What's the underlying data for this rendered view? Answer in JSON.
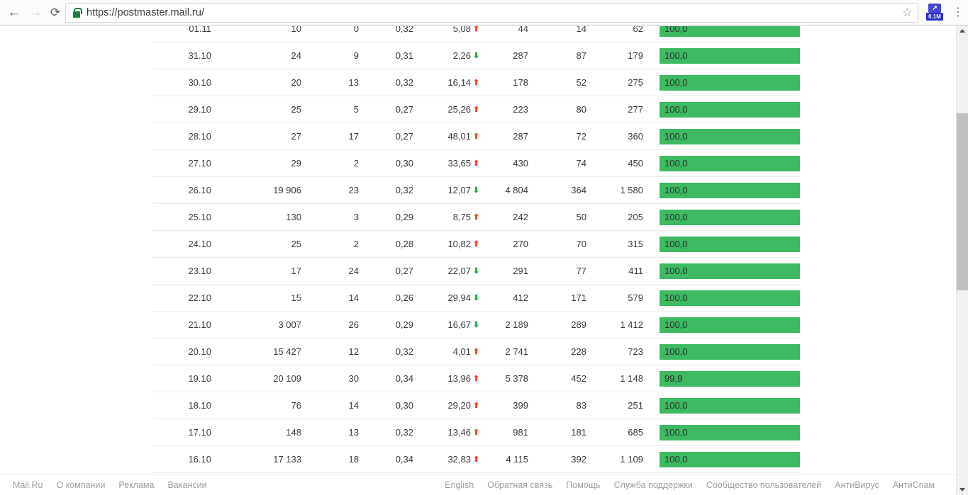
{
  "browser": {
    "url": "https://postmaster.mail.ru/",
    "extension_badge": "0.1M",
    "back_glyph": "←",
    "forward_glyph": "→",
    "reload_glyph": "⟳",
    "star_glyph": "☆",
    "menu_glyph": "⋮",
    "extension_glyph": "↗"
  },
  "colors": {
    "bar_green": "#3dba62",
    "trend_up": "#e8491c",
    "trend_down": "#21a94d"
  },
  "page": {
    "table": {
      "rows": [
        {
          "date": "01.11",
          "v1": "10",
          "v2": "0",
          "v3": "0,32",
          "pct": "5,08",
          "trend": "up",
          "v5": "44",
          "v6": "14",
          "v7": "62",
          "bar": "100,0"
        },
        {
          "date": "31.10",
          "v1": "24",
          "v2": "9",
          "v3": "0,31",
          "pct": "2,26",
          "trend": "down",
          "v5": "287",
          "v6": "87",
          "v7": "179",
          "bar": "100,0"
        },
        {
          "date": "30.10",
          "v1": "20",
          "v2": "13",
          "v3": "0,32",
          "pct": "16,14",
          "trend": "up",
          "v5": "178",
          "v6": "52",
          "v7": "275",
          "bar": "100,0"
        },
        {
          "date": "29.10",
          "v1": "25",
          "v2": "5",
          "v3": "0,27",
          "pct": "25,26",
          "trend": "up",
          "v5": "223",
          "v6": "80",
          "v7": "277",
          "bar": "100,0"
        },
        {
          "date": "28.10",
          "v1": "27",
          "v2": "17",
          "v3": "0,27",
          "pct": "48,01",
          "trend": "up",
          "v5": "287",
          "v6": "72",
          "v7": "360",
          "bar": "100,0"
        },
        {
          "date": "27.10",
          "v1": "29",
          "v2": "2",
          "v3": "0,30",
          "pct": "33,65",
          "trend": "up",
          "v5": "430",
          "v6": "74",
          "v7": "450",
          "bar": "100,0"
        },
        {
          "date": "26.10",
          "v1": "19 906",
          "v2": "23",
          "v3": "0,32",
          "pct": "12,07",
          "trend": "down",
          "v5": "4 804",
          "v6": "364",
          "v7": "1 580",
          "bar": "100,0"
        },
        {
          "date": "25.10",
          "v1": "130",
          "v2": "3",
          "v3": "0,29",
          "pct": "8,75",
          "trend": "up",
          "v5": "242",
          "v6": "50",
          "v7": "205",
          "bar": "100,0"
        },
        {
          "date": "24.10",
          "v1": "25",
          "v2": "2",
          "v3": "0,28",
          "pct": "10,82",
          "trend": "up",
          "v5": "270",
          "v6": "70",
          "v7": "315",
          "bar": "100,0"
        },
        {
          "date": "23.10",
          "v1": "17",
          "v2": "24",
          "v3": "0,27",
          "pct": "22,07",
          "trend": "down",
          "v5": "291",
          "v6": "77",
          "v7": "411",
          "bar": "100,0"
        },
        {
          "date": "22.10",
          "v1": "15",
          "v2": "14",
          "v3": "0,26",
          "pct": "29,94",
          "trend": "down",
          "v5": "412",
          "v6": "171",
          "v7": "579",
          "bar": "100,0"
        },
        {
          "date": "21.10",
          "v1": "3 007",
          "v2": "26",
          "v3": "0,29",
          "pct": "16,67",
          "trend": "down",
          "v5": "2 189",
          "v6": "289",
          "v7": "1 412",
          "bar": "100,0"
        },
        {
          "date": "20.10",
          "v1": "15 427",
          "v2": "12",
          "v3": "0,32",
          "pct": "4,01",
          "trend": "up",
          "v5": "2 741",
          "v6": "228",
          "v7": "723",
          "bar": "100,0"
        },
        {
          "date": "19.10",
          "v1": "20 109",
          "v2": "30",
          "v3": "0,34",
          "pct": "13,96",
          "trend": "up",
          "v5": "5 378",
          "v6": "452",
          "v7": "1 148",
          "bar": "99,9"
        },
        {
          "date": "18.10",
          "v1": "76",
          "v2": "14",
          "v3": "0,30",
          "pct": "29,20",
          "trend": "up",
          "v5": "399",
          "v6": "83",
          "v7": "251",
          "bar": "100,0"
        },
        {
          "date": "17.10",
          "v1": "148",
          "v2": "13",
          "v3": "0,32",
          "pct": "13,46",
          "trend": "up",
          "v5": "981",
          "v6": "181",
          "v7": "685",
          "bar": "100,0"
        },
        {
          "date": "16.10",
          "v1": "17 133",
          "v2": "18",
          "v3": "0,34",
          "pct": "32,83",
          "trend": "up",
          "v5": "4 115",
          "v6": "392",
          "v7": "1 109",
          "bar": "100,0"
        }
      ]
    },
    "footer": {
      "left": [
        "Mail.Ru",
        "О компании",
        "Реклама",
        "Вакансии"
      ],
      "right": [
        "English",
        "Обратная связь",
        "Помощь",
        "Служба поддержки",
        "Сообщество пользователей",
        "АнтиВирус",
        "АнтиСпам"
      ]
    }
  }
}
